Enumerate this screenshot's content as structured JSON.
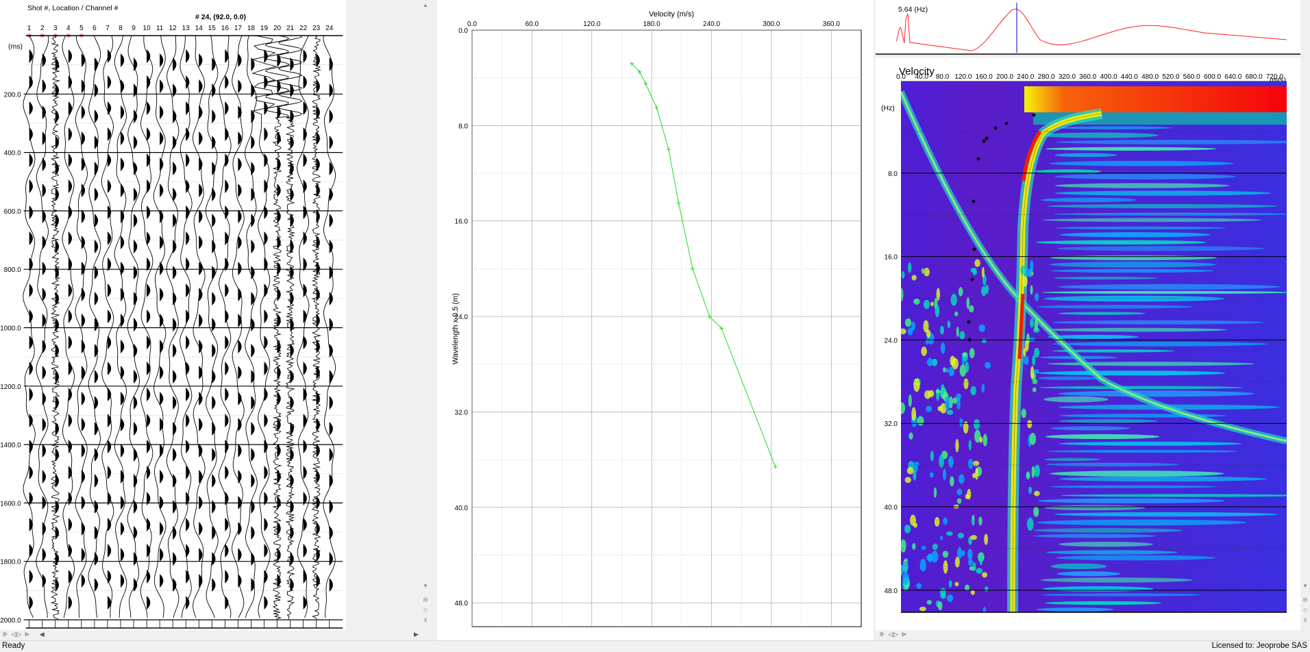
{
  "seismogram": {
    "header_label": "Shot #, Location / Channel #",
    "shot_label": "# 24,  (92.0, 0.0)",
    "unit_label": "(ms)",
    "channels": [
      "1",
      "2",
      "3",
      "4",
      "5",
      "6",
      "7",
      "8",
      "9",
      "10",
      "11",
      "12",
      "13",
      "14",
      "15",
      "16",
      "17",
      "18",
      "19",
      "20",
      "21",
      "22",
      "23",
      "24"
    ],
    "time_ticks": [
      "200.0",
      "400.0",
      "600.0",
      "800.0",
      "1000.0",
      "1200.0",
      "1400.0",
      "1600.0",
      "1800.0",
      "2000.0"
    ]
  },
  "dispersion_curve": {
    "chart_data": {
      "type": "line",
      "xlabel": "Velocity (m/s)",
      "ylabel": "Wavelength x 0.5 (m)",
      "x_ticks": [
        "0.0",
        "60.0",
        "120.0",
        "180.0",
        "240.0",
        "300.0",
        "360.0"
      ],
      "y_ticks": [
        "0.0",
        "8.0",
        "16.0",
        "24.0",
        "32.0",
        "40.0",
        "48.0"
      ],
      "xlim": [
        0,
        390
      ],
      "ylim": [
        0,
        50
      ],
      "y_inverted": true,
      "grid": true,
      "series": [
        {
          "color": "#22dd22",
          "points": [
            [
              160,
              2.8
            ],
            [
              168,
              3.5
            ],
            [
              174,
              4.5
            ],
            [
              185,
              6.5
            ],
            [
              197,
              10
            ],
            [
              207,
              14.5
            ],
            [
              221,
              20
            ],
            [
              238,
              24
            ],
            [
              250,
              25
            ],
            [
              304,
              36.6
            ]
          ]
        }
      ]
    }
  },
  "spectrum": {
    "freq_readout": "5.64 (Hz)",
    "velocity_title": "Velocity",
    "x_unit": "(m/s)",
    "y_unit": "(Hz)",
    "x_ticks": [
      "0.0",
      "40.0",
      "80.0",
      "120.0",
      "160.0",
      "200.0",
      "240.0",
      "280.0",
      "320.0",
      "360.0",
      "400.0",
      "440.0",
      "480.0",
      "520.0",
      "560.0",
      "600.0",
      "640.0",
      "680.0",
      "720.0"
    ],
    "y_ticks": [
      "8.0",
      "16.0",
      "24.0",
      "32.0",
      "40.0",
      "48.0"
    ]
  },
  "status": {
    "left": "Ready",
    "right": "Licensed to: Jeoprobe SAS"
  },
  "colors": {
    "curve": "#22dd22",
    "spectrum_line": "#ff2020",
    "picks": "#000000",
    "axis": "#000000"
  }
}
